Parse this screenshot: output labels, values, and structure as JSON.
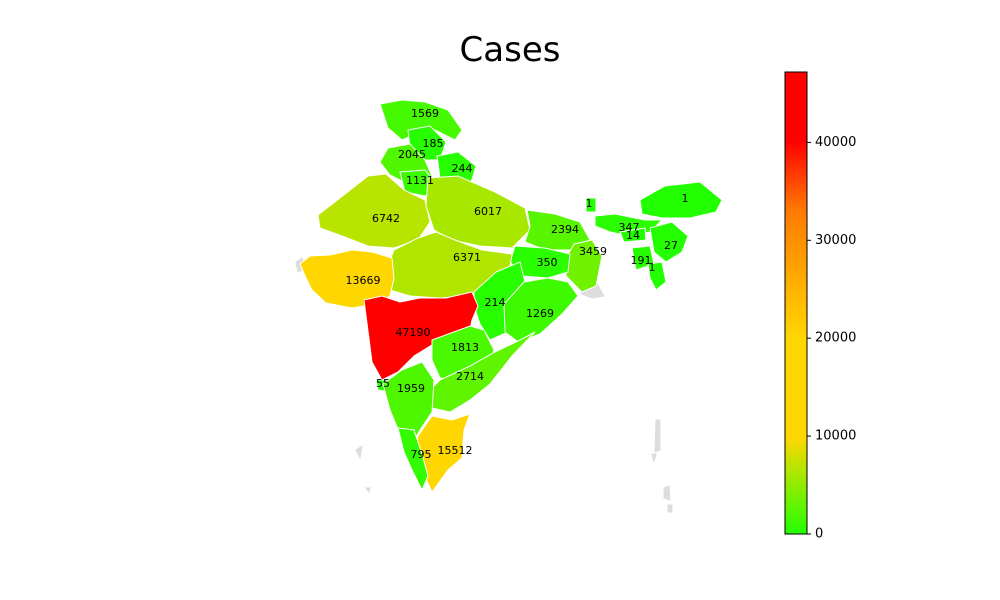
{
  "title": "Cases",
  "colors": {
    "low": "#22ff00",
    "mid": "#ffd700",
    "high": "#ff0000",
    "border": "#ffffff",
    "other": "#dddddd"
  },
  "colorbar": {
    "min": 0,
    "max": 47190,
    "ticks": [
      {
        "value": 0,
        "label": "0"
      },
      {
        "value": 10000,
        "label": "10000"
      },
      {
        "value": 20000,
        "label": "20000"
      },
      {
        "value": 30000,
        "label": "30000"
      },
      {
        "value": 40000,
        "label": "40000"
      }
    ]
  },
  "chart_data": {
    "type": "choropleth",
    "values": [
      1569,
      185,
      2045,
      244,
      1131,
      6742,
      6017,
      1,
      1,
      2394,
      347,
      14,
      27,
      3459,
      191,
      1,
      350,
      6371,
      13669,
      214,
      1269,
      47190,
      1813,
      55,
      2714,
      1959,
      15512,
      795
    ]
  }
}
